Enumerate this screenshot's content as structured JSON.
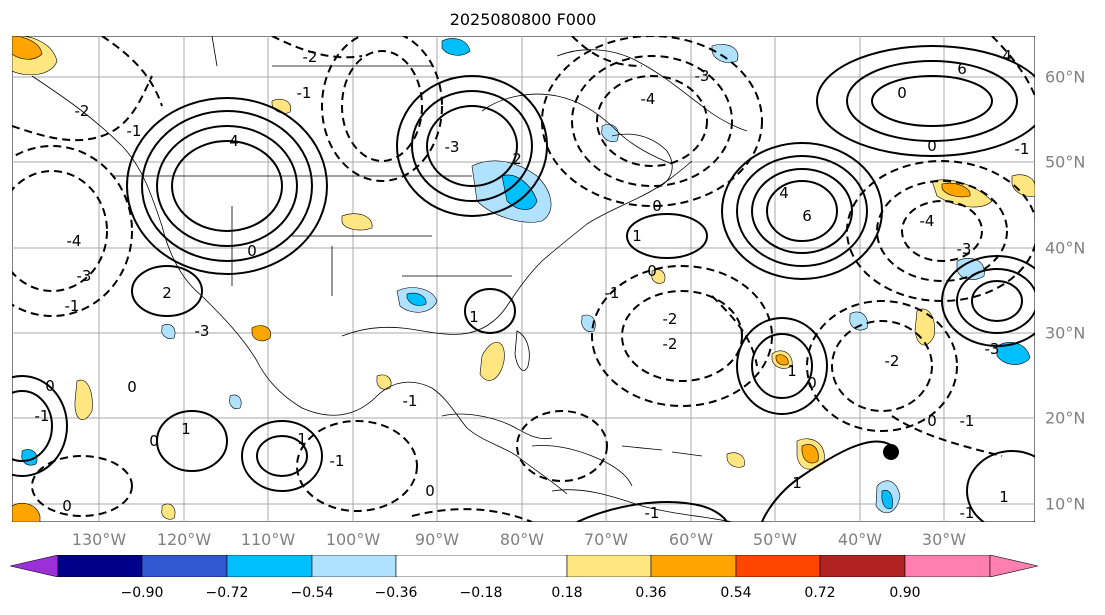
{
  "title": "2025080800 F000",
  "lon_labels": [
    "130°W",
    "120°W",
    "110°W",
    "100°W",
    "90°W",
    "80°W",
    "70°W",
    "60°W",
    "50°W",
    "40°W",
    "30°W"
  ],
  "lat_labels": [
    "60°N",
    "50°N",
    "40°N",
    "30°N",
    "20°N",
    "10°N"
  ],
  "colorbar": {
    "tick_labels": [
      "−0.90",
      "−0.72",
      "−0.54",
      "−0.36",
      "−0.18",
      "0.18",
      "0.36",
      "0.54",
      "0.72",
      "0.90"
    ],
    "colors": [
      "#9b30d9",
      "#00008b",
      "#3158d0",
      "#00bfff",
      "#b0e2ff",
      "#ffffff",
      "#ffe680",
      "#ffa500",
      "#ff4500",
      "#b22222",
      "#ff80b0"
    ]
  },
  "contour_labels": [
    "-1",
    "-2",
    "-3",
    "-4",
    "0",
    "1",
    "2",
    "4",
    "6",
    "-1",
    "0",
    "-2",
    "2",
    "-3",
    "4",
    "6",
    "-4",
    "-1",
    "0",
    "1",
    "-2",
    "2",
    "4",
    "-1",
    "0",
    "1",
    "2",
    "-1",
    "-3",
    "-2"
  ],
  "marker": "storm-center-marker"
}
